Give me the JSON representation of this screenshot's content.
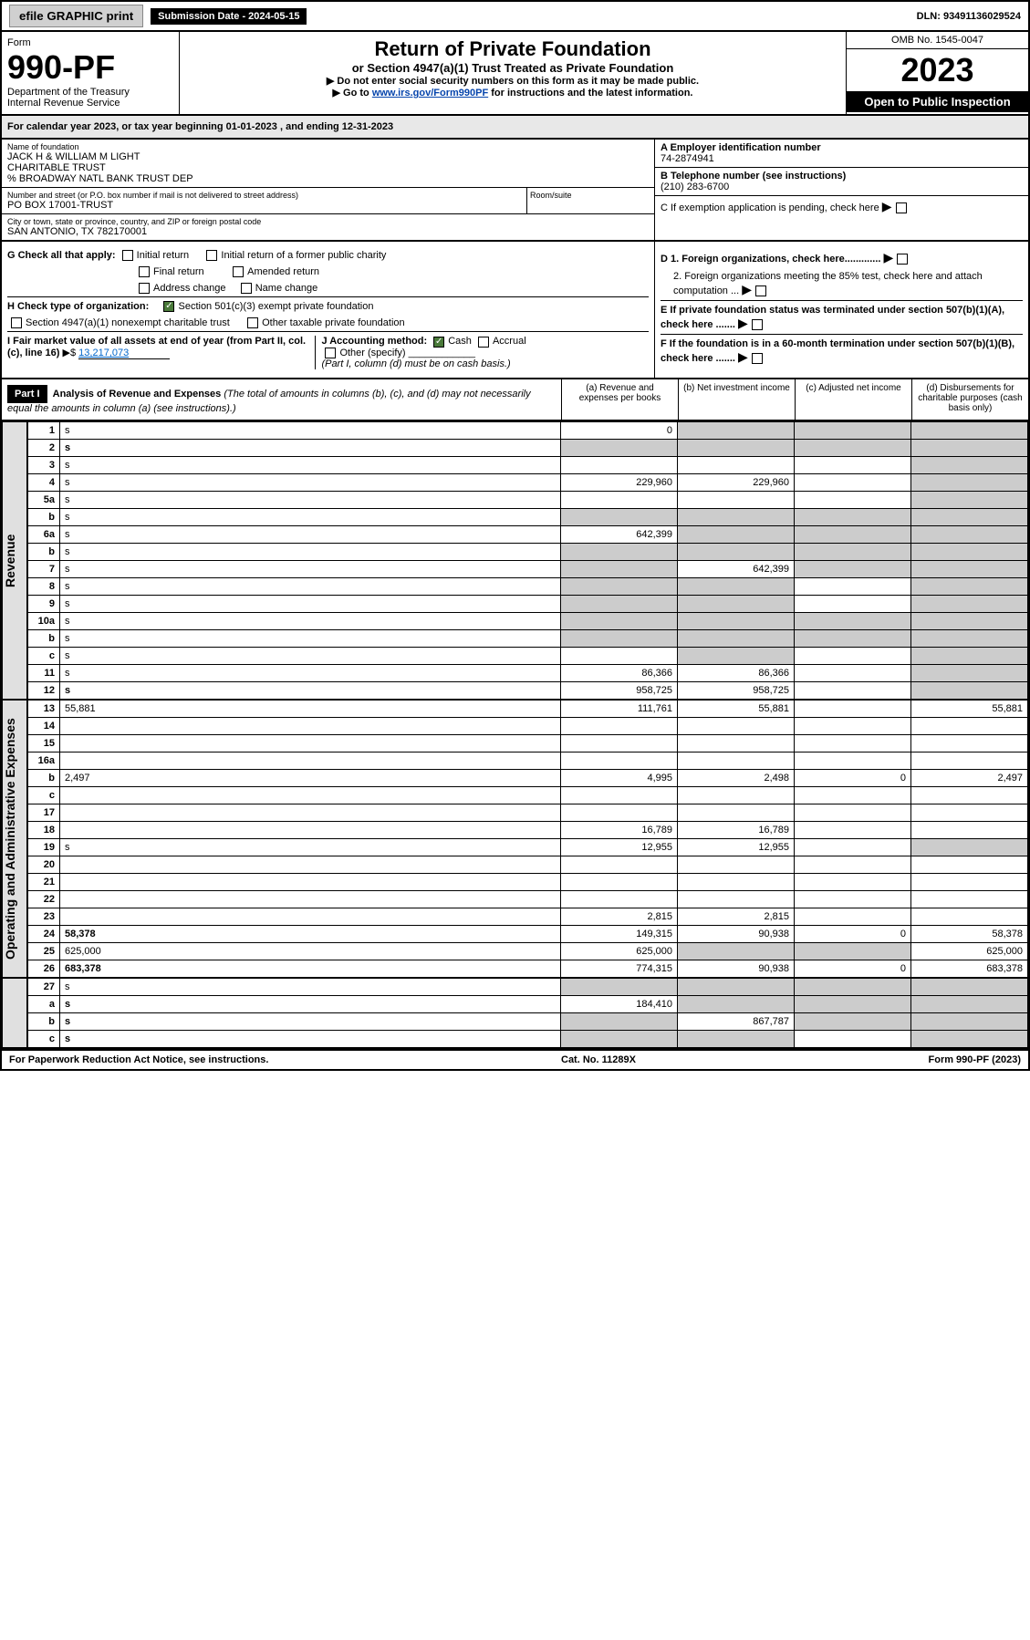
{
  "top": {
    "efile": "efile GRAPHIC print",
    "submission": "Submission Date - 2024-05-15",
    "dln": "DLN: 93491136029524"
  },
  "header": {
    "form_label": "Form",
    "form_num": "990-PF",
    "dept": "Department of the Treasury",
    "irs": "Internal Revenue Service",
    "title": "Return of Private Foundation",
    "subtitle": "or Section 4947(a)(1) Trust Treated as Private Foundation",
    "note1": "▶ Do not enter social security numbers on this form as it may be made public.",
    "note2_pre": "▶ Go to ",
    "note2_link": "www.irs.gov/Form990PF",
    "note2_post": " for instructions and the latest information.",
    "omb": "OMB No. 1545-0047",
    "year": "2023",
    "open": "Open to Public Inspection"
  },
  "cal_year": "For calendar year 2023, or tax year beginning 01-01-2023                                , and ending 12-31-2023",
  "info": {
    "name_lbl": "Name of foundation",
    "name1": "JACK H & WILLIAM M LIGHT",
    "name2": "CHARITABLE TRUST",
    "name3": "% BROADWAY NATL BANK TRUST DEP",
    "addr_lbl": "Number and street (or P.O. box number if mail is not delivered to street address)",
    "addr": "PO BOX 17001-TRUST",
    "room_lbl": "Room/suite",
    "city_lbl": "City or town, state or province, country, and ZIP or foreign postal code",
    "city": "SAN ANTONIO, TX  782170001",
    "a_lbl": "A Employer identification number",
    "a_val": "74-2874941",
    "b_lbl": "B Telephone number (see instructions)",
    "b_val": "(210) 283-6700",
    "c_lbl": "C If exemption application is pending, check here",
    "d1": "D 1. Foreign organizations, check here.............",
    "d2": "2. Foreign organizations meeting the 85% test, check here and attach computation ...",
    "e": "E  If private foundation status was terminated under section 507(b)(1)(A), check here .......",
    "f": "F  If the foundation is in a 60-month termination under section 507(b)(1)(B), check here .......",
    "g_lbl": "G Check all that apply:",
    "g_initial": "Initial return",
    "g_initial_former": "Initial return of a former public charity",
    "g_final": "Final return",
    "g_amended": "Amended return",
    "g_addr": "Address change",
    "g_name": "Name change",
    "h_lbl": "H Check type of organization:",
    "h_501c3": "Section 501(c)(3) exempt private foundation",
    "h_4947": "Section 4947(a)(1) nonexempt charitable trust",
    "h_other_tax": "Other taxable private foundation",
    "i_lbl": "I Fair market value of all assets at end of year (from Part II, col. (c), line 16)",
    "i_val": "13,217,073",
    "j_lbl": "J Accounting method:",
    "j_cash": "Cash",
    "j_accrual": "Accrual",
    "j_other": "Other (specify)",
    "j_note": "(Part I, column (d) must be on cash basis.)"
  },
  "part1": {
    "label": "Part I",
    "title": "Analysis of Revenue and Expenses",
    "title_note": "(The total of amounts in columns (b), (c), and (d) may not necessarily equal the amounts in column (a) (see instructions).)",
    "col_a": "(a)   Revenue and expenses per books",
    "col_b": "(b)   Net investment income",
    "col_c": "(c)   Adjusted net income",
    "col_d": "(d)  Disbursements for charitable purposes (cash basis only)"
  },
  "side": {
    "revenue": "Revenue",
    "opex": "Operating and Administrative Expenses"
  },
  "rows": [
    {
      "n": "1",
      "d": "s",
      "a": "0",
      "b": "s",
      "c": "s"
    },
    {
      "n": "2",
      "d": "s",
      "a": "s",
      "b": "s",
      "c": "s",
      "bold": true
    },
    {
      "n": "3",
      "d": "s",
      "a": "",
      "b": "",
      "c": ""
    },
    {
      "n": "4",
      "d": "s",
      "a": "229,960",
      "b": "229,960",
      "c": ""
    },
    {
      "n": "5a",
      "d": "s",
      "a": "",
      "b": "",
      "c": ""
    },
    {
      "n": "b",
      "d": "s",
      "a": "s",
      "b": "s",
      "c": "s"
    },
    {
      "n": "6a",
      "d": "s",
      "a": "642,399",
      "b": "s",
      "c": "s"
    },
    {
      "n": "b",
      "d": "s",
      "a": "s",
      "b": "s",
      "c": "s"
    },
    {
      "n": "7",
      "d": "s",
      "a": "s",
      "b": "642,399",
      "c": "s"
    },
    {
      "n": "8",
      "d": "s",
      "a": "s",
      "b": "s",
      "c": ""
    },
    {
      "n": "9",
      "d": "s",
      "a": "s",
      "b": "s",
      "c": ""
    },
    {
      "n": "10a",
      "d": "s",
      "a": "s",
      "b": "s",
      "c": "s"
    },
    {
      "n": "b",
      "d": "s",
      "a": "s",
      "b": "s",
      "c": "s"
    },
    {
      "n": "c",
      "d": "s",
      "a": "",
      "b": "s",
      "c": ""
    },
    {
      "n": "11",
      "d": "s",
      "a": "86,366",
      "b": "86,366",
      "c": ""
    },
    {
      "n": "12",
      "d": "s",
      "a": "958,725",
      "b": "958,725",
      "c": "",
      "bold": true
    }
  ],
  "rows_exp": [
    {
      "n": "13",
      "d": "55,881",
      "a": "111,761",
      "b": "55,881",
      "c": ""
    },
    {
      "n": "14",
      "d": "",
      "a": "",
      "b": "",
      "c": ""
    },
    {
      "n": "15",
      "d": "",
      "a": "",
      "b": "",
      "c": ""
    },
    {
      "n": "16a",
      "d": "",
      "a": "",
      "b": "",
      "c": ""
    },
    {
      "n": "b",
      "d": "2,497",
      "a": "4,995",
      "b": "2,498",
      "c": "0"
    },
    {
      "n": "c",
      "d": "",
      "a": "",
      "b": "",
      "c": ""
    },
    {
      "n": "17",
      "d": "",
      "a": "",
      "b": "",
      "c": ""
    },
    {
      "n": "18",
      "d": "",
      "a": "16,789",
      "b": "16,789",
      "c": ""
    },
    {
      "n": "19",
      "d": "s",
      "a": "12,955",
      "b": "12,955",
      "c": ""
    },
    {
      "n": "20",
      "d": "",
      "a": "",
      "b": "",
      "c": ""
    },
    {
      "n": "21",
      "d": "",
      "a": "",
      "b": "",
      "c": ""
    },
    {
      "n": "22",
      "d": "",
      "a": "",
      "b": "",
      "c": ""
    },
    {
      "n": "23",
      "d": "",
      "a": "2,815",
      "b": "2,815",
      "c": ""
    },
    {
      "n": "24",
      "d": "58,378",
      "a": "149,315",
      "b": "90,938",
      "c": "0",
      "bold": true
    },
    {
      "n": "25",
      "d": "625,000",
      "a": "625,000",
      "b": "s",
      "c": "s"
    },
    {
      "n": "26",
      "d": "683,378",
      "a": "774,315",
      "b": "90,938",
      "c": "0",
      "bold": true
    }
  ],
  "rows_sub": [
    {
      "n": "27",
      "d": "s",
      "a": "s",
      "b": "s",
      "c": "s"
    },
    {
      "n": "a",
      "d": "s",
      "a": "184,410",
      "b": "s",
      "c": "s",
      "bold": true
    },
    {
      "n": "b",
      "d": "s",
      "a": "s",
      "b": "867,787",
      "c": "s",
      "bold": true
    },
    {
      "n": "c",
      "d": "s",
      "a": "s",
      "b": "s",
      "c": "",
      "bold": true
    }
  ],
  "footer": {
    "left": "For Paperwork Reduction Act Notice, see instructions.",
    "mid": "Cat. No. 11289X",
    "right": "Form 990-PF (2023)"
  }
}
